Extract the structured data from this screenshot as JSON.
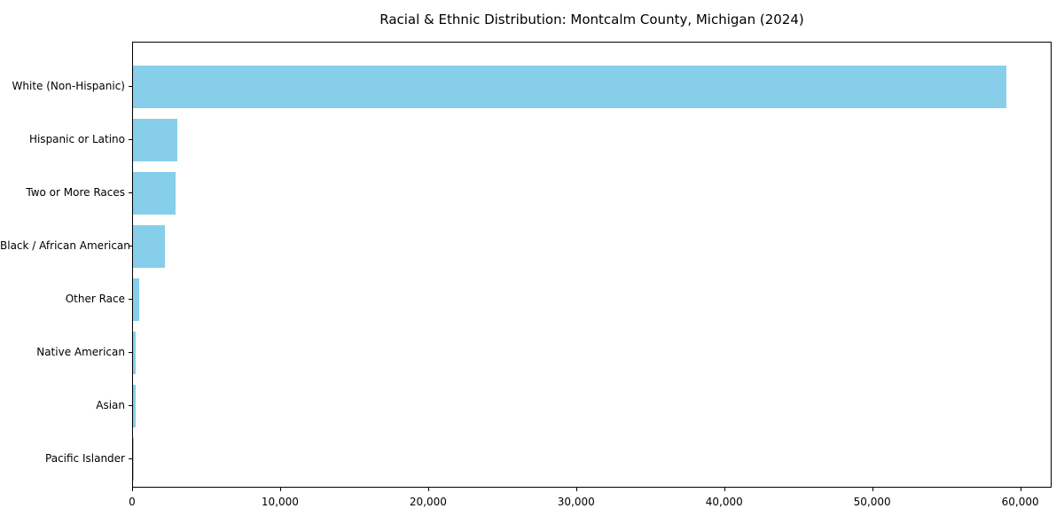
{
  "chart_data": {
    "type": "bar",
    "orientation": "horizontal",
    "title": "Racial & Ethnic Distribution: Montcalm County, Michigan (2024)",
    "categories": [
      "White (Non-Hispanic)",
      "Hispanic or Latino",
      "Two or More Races",
      "Black / African American",
      "Other Race",
      "Native American",
      "Asian",
      "Pacific Islander"
    ],
    "values": [
      59000,
      3000,
      2900,
      2150,
      420,
      160,
      150,
      20
    ],
    "bar_color": "#87CEEB",
    "xlabel": "",
    "ylabel": "",
    "xlim": [
      0,
      62000
    ],
    "x_ticks": [
      0,
      10000,
      20000,
      30000,
      40000,
      50000,
      60000
    ],
    "x_tick_labels": [
      "0",
      "10,000",
      "20,000",
      "30,000",
      "40,000",
      "50,000",
      "60,000"
    ],
    "grid": false,
    "legend": false,
    "background_color": "#ffffff",
    "spine_color": "#000000"
  }
}
